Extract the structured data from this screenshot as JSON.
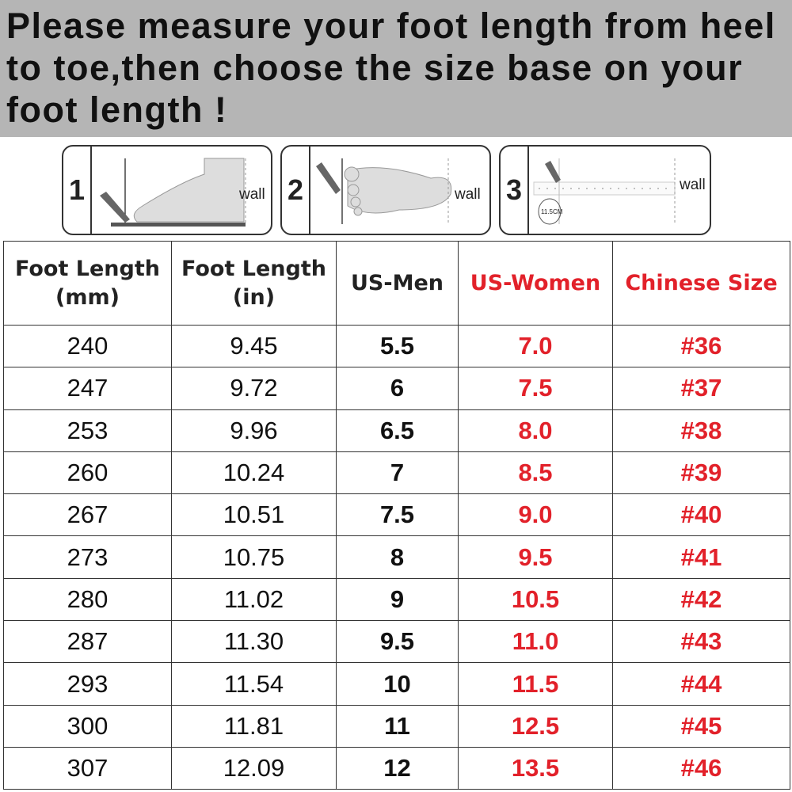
{
  "banner": {
    "text": "Please measure your foot length from heel to toe,then choose the size base on your foot length !"
  },
  "steps": [
    {
      "number": "1",
      "wall_label": "wall"
    },
    {
      "number": "2",
      "wall_label": "wall"
    },
    {
      "number": "3",
      "wall_label": "wall",
      "ruler_label": "11.5CM"
    }
  ],
  "colors": {
    "accent": "#e2212a",
    "banner_bg": "#b5b5b5"
  },
  "table": {
    "headers": [
      "Foot Length (mm)",
      "Foot Length (in)",
      "US-Men",
      "US-Women",
      "Chinese Size"
    ],
    "rows": [
      [
        "240",
        "9.45",
        "5.5",
        "7.0",
        "#36"
      ],
      [
        "247",
        "9.72",
        "6",
        "7.5",
        "#37"
      ],
      [
        "253",
        "9.96",
        "6.5",
        "8.0",
        "#38"
      ],
      [
        "260",
        "10.24",
        "7",
        "8.5",
        "#39"
      ],
      [
        "267",
        "10.51",
        "7.5",
        "9.0",
        "#40"
      ],
      [
        "273",
        "10.75",
        "8",
        "9.5",
        "#41"
      ],
      [
        "280",
        "11.02",
        "9",
        "10.5",
        "#42"
      ],
      [
        "287",
        "11.30",
        "9.5",
        "11.0",
        "#43"
      ],
      [
        "293",
        "11.54",
        "10",
        "11.5",
        "#44"
      ],
      [
        "300",
        "11.81",
        "11",
        "12.5",
        "#45"
      ],
      [
        "307",
        "12.09",
        "12",
        "13.5",
        "#46"
      ]
    ]
  }
}
